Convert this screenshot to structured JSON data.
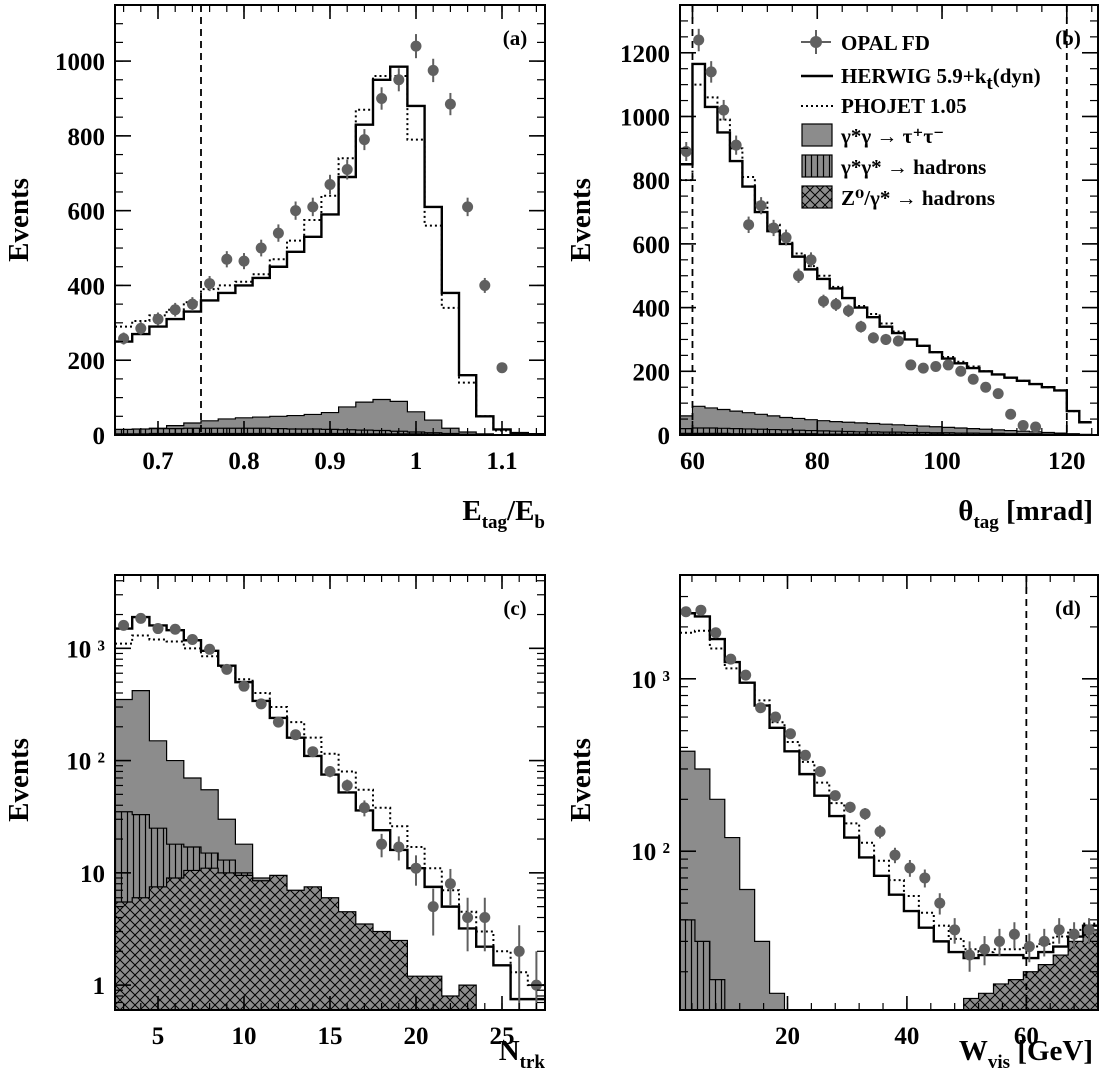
{
  "colors": {
    "fill_tau": "#8c8c8c",
    "marker": "#606060",
    "ink": "#000000"
  },
  "legend": {
    "data": "OPAL FD",
    "herwig": "HERWIG 5.9+k",
    "herwig_sub": "t",
    "herwig_tail": "(dyn)",
    "phojet": "PHOJET 1.05",
    "tau": "γ*γ → τ⁺τ⁻",
    "gg_had": "γ*γ* → hadrons",
    "z_had": "Z⁰/γ* → hadrons"
  },
  "chart_data": [
    {
      "panel": "(a)",
      "type": "histogram",
      "ylabel": "Events",
      "xlabel_main": "E",
      "xlabel_sub1": "tag",
      "xlabel_mid": "/E",
      "xlabel_sub2": "b",
      "xlim": [
        0.65,
        1.15
      ],
      "ylim": [
        0,
        1150
      ],
      "log": false,
      "xticks": [
        {
          "v": 0.7,
          "label": "0.7"
        },
        {
          "v": 0.8,
          "label": "0.8"
        },
        {
          "v": 0.9,
          "label": "0.9"
        },
        {
          "v": 1.0,
          "label": "1"
        },
        {
          "v": 1.1,
          "label": "1.1"
        }
      ],
      "yticks": [
        {
          "v": 0,
          "label": "0"
        },
        {
          "v": 200,
          "label": "200"
        },
        {
          "v": 400,
          "label": "400"
        },
        {
          "v": 600,
          "label": "600"
        },
        {
          "v": 800,
          "label": "800"
        },
        {
          "v": 1000,
          "label": "1000"
        }
      ],
      "cut_x": [
        0.75
      ],
      "bin_edges": [
        0.65,
        0.67,
        0.69,
        0.71,
        0.73,
        0.75,
        0.77,
        0.79,
        0.81,
        0.83,
        0.85,
        0.87,
        0.89,
        0.91,
        0.93,
        0.95,
        0.97,
        0.99,
        1.01,
        1.03,
        1.05,
        1.07,
        1.09,
        1.11,
        1.13,
        1.15
      ],
      "herwig": [
        250,
        270,
        290,
        310,
        330,
        360,
        380,
        400,
        420,
        450,
        490,
        530,
        590,
        690,
        830,
        950,
        985,
        880,
        610,
        380,
        160,
        50,
        15,
        5,
        2
      ],
      "phojet": [
        290,
        305,
        320,
        335,
        355,
        390,
        400,
        410,
        430,
        470,
        520,
        575,
        640,
        740,
        870,
        960,
        960,
        790,
        560,
        340,
        140,
        50,
        12,
        4,
        1
      ],
      "tau": [
        8,
        12,
        18,
        25,
        32,
        38,
        43,
        46,
        48,
        50,
        52,
        55,
        60,
        75,
        88,
        95,
        90,
        62,
        40,
        18,
        8,
        3,
        1,
        0,
        0
      ],
      "gg_had": [
        15,
        16,
        17,
        17,
        18,
        18,
        18,
        18,
        18,
        17,
        16,
        16,
        15,
        14,
        13,
        12,
        10,
        8,
        6,
        4,
        2,
        1,
        0,
        0,
        0
      ],
      "z_had": [
        3,
        3,
        4,
        4,
        4,
        4,
        4,
        4,
        4,
        4,
        4,
        4,
        4,
        4,
        3,
        3,
        3,
        3,
        2,
        1,
        1,
        0,
        0,
        0,
        0
      ],
      "data_x": [
        0.66,
        0.68,
        0.7,
        0.72,
        0.74,
        0.76,
        0.78,
        0.8,
        0.82,
        0.84,
        0.86,
        0.88,
        0.9,
        0.92,
        0.94,
        0.96,
        0.98,
        1.0,
        1.02,
        1.04,
        1.06,
        1.08,
        1.1
      ],
      "data_y": [
        258,
        285,
        310,
        335,
        350,
        405,
        470,
        465,
        500,
        540,
        600,
        610,
        670,
        710,
        790,
        900,
        950,
        1040,
        975,
        885,
        610,
        400,
        180
      ]
    },
    {
      "panel": "(b)",
      "type": "histogram",
      "ylabel": "Events",
      "xlabel_main": "θ",
      "xlabel_sub1": "tag",
      "xlabel_mid": " [mrad]",
      "xlabel_sub2": "",
      "xlim": [
        58,
        125
      ],
      "ylim": [
        0,
        1350
      ],
      "log": false,
      "xticks": [
        {
          "v": 60,
          "label": "60"
        },
        {
          "v": 80,
          "label": "80"
        },
        {
          "v": 100,
          "label": "100"
        },
        {
          "v": 120,
          "label": "120"
        }
      ],
      "yticks": [
        {
          "v": 0,
          "label": "0"
        },
        {
          "v": 200,
          "label": "200"
        },
        {
          "v": 400,
          "label": "400"
        },
        {
          "v": 600,
          "label": "600"
        },
        {
          "v": 800,
          "label": "800"
        },
        {
          "v": 1000,
          "label": "1000"
        },
        {
          "v": 1200,
          "label": "1200"
        }
      ],
      "cut_x": [
        60,
        120
      ],
      "bin_edges": [
        58,
        60,
        62,
        64,
        66,
        68,
        70,
        72,
        74,
        76,
        78,
        80,
        82,
        84,
        86,
        88,
        90,
        92,
        94,
        96,
        98,
        100,
        102,
        104,
        106,
        108,
        110,
        112,
        114,
        116,
        118,
        120,
        122,
        124
      ],
      "herwig": [
        850,
        1165,
        1030,
        950,
        860,
        780,
        700,
        640,
        600,
        560,
        520,
        490,
        460,
        430,
        400,
        370,
        340,
        320,
        300,
        280,
        260,
        240,
        225,
        210,
        200,
        190,
        180,
        170,
        160,
        150,
        140,
        75,
        40
      ],
      "phojet": [
        800,
        1100,
        1060,
        990,
        900,
        810,
        730,
        660,
        610,
        570,
        530,
        500,
        465,
        430,
        405,
        380,
        350,
        325,
        300,
        280,
        260,
        245,
        230,
        215,
        200,
        190,
        180,
        170,
        160,
        150,
        140,
        75,
        40
      ],
      "tau": [
        60,
        90,
        85,
        80,
        75,
        70,
        65,
        60,
        55,
        52,
        48,
        45,
        42,
        40,
        38,
        36,
        34,
        32,
        30,
        28,
        26,
        24,
        22,
        20,
        18,
        16,
        14,
        12,
        10,
        8,
        6,
        4,
        2
      ],
      "gg_had": [
        20,
        22,
        22,
        21,
        20,
        19,
        18,
        17,
        16,
        15,
        14,
        13,
        12,
        11,
        10,
        10,
        9,
        9,
        8,
        8,
        7,
        7,
        6,
        6,
        5,
        5,
        4,
        4,
        4,
        3,
        3,
        2,
        1
      ],
      "z_had": [
        5,
        5,
        5,
        5,
        4,
        4,
        4,
        4,
        4,
        4,
        4,
        3,
        3,
        3,
        3,
        3,
        3,
        3,
        3,
        3,
        3,
        2,
        2,
        2,
        2,
        2,
        2,
        2,
        2,
        2,
        2,
        1,
        1
      ],
      "data_x": [
        59,
        61,
        63,
        65,
        67,
        69,
        71,
        73,
        75,
        77,
        79,
        81,
        83,
        85,
        87,
        89,
        91,
        93,
        95,
        97,
        99,
        101,
        103,
        105,
        107,
        109,
        111,
        113,
        115,
        117,
        119,
        121,
        123
      ],
      "data_y": [
        890,
        1240,
        1140,
        1020,
        910,
        660,
        720,
        650,
        620,
        500,
        550,
        420,
        410,
        390,
        340,
        305,
        300,
        295,
        220,
        210,
        215,
        220,
        200,
        175,
        150,
        130,
        65,
        30,
        25,
        0,
        0,
        0,
        0
      ]
    },
    {
      "panel": "(c)",
      "type": "histogram",
      "ylabel": "Events",
      "xlabel_main": "N",
      "xlabel_sub1": "trk",
      "xlabel_mid": "",
      "xlabel_sub2": "",
      "xlim": [
        2.5,
        27.5
      ],
      "ylim": [
        0.6,
        4500
      ],
      "log": true,
      "xticks": [
        {
          "v": 5,
          "label": "5"
        },
        {
          "v": 10,
          "label": "10"
        },
        {
          "v": 15,
          "label": "15"
        },
        {
          "v": 20,
          "label": "20"
        },
        {
          "v": 25,
          "label": "25"
        }
      ],
      "yticks": [
        {
          "v": 1,
          "label": "1"
        },
        {
          "v": 10,
          "label": "10"
        },
        {
          "v": 100,
          "label": "10 ²"
        },
        {
          "v": 1000,
          "label": "10 ³"
        }
      ],
      "cut_x": [],
      "bin_edges": [
        2.5,
        3.5,
        4.5,
        5.5,
        6.5,
        7.5,
        8.5,
        9.5,
        10.5,
        11.5,
        12.5,
        13.5,
        14.5,
        15.5,
        16.5,
        17.5,
        18.5,
        19.5,
        20.5,
        21.5,
        22.5,
        23.5,
        24.5,
        25.5,
        26.5,
        27.5
      ],
      "herwig": [
        1500,
        1900,
        1600,
        1450,
        1180,
        950,
        700,
        500,
        340,
        240,
        160,
        110,
        75,
        52,
        36,
        24,
        16,
        11,
        7.5,
        5,
        3.2,
        2.2,
        1.5,
        0.75,
        0.75
      ],
      "phojet": [
        1100,
        1300,
        1200,
        1150,
        1000,
        850,
        680,
        530,
        400,
        300,
        220,
        160,
        115,
        80,
        55,
        38,
        26,
        17,
        11,
        7,
        4.5,
        3,
        2,
        1.3,
        1.0
      ],
      "tau": [
        350,
        420,
        150,
        100,
        70,
        55,
        30,
        18,
        9,
        6,
        4,
        2,
        1.3,
        0.9,
        0.7,
        0.5,
        0,
        0,
        0,
        0,
        0,
        0,
        0,
        0,
        0
      ],
      "gg_had": [
        35,
        33,
        25,
        18,
        17,
        15,
        13,
        10,
        8,
        6,
        4.5,
        3.5,
        2.5,
        2,
        1.5,
        1.2,
        0.8,
        0,
        0,
        0,
        0,
        0,
        0,
        0,
        0
      ],
      "z_had": [
        5.5,
        6,
        7.5,
        9,
        10.5,
        11,
        10,
        9.5,
        8.5,
        9.5,
        7,
        7.5,
        6,
        4.5,
        3.5,
        3,
        2.5,
        1.2,
        1.2,
        0.8,
        1.0,
        0,
        0,
        0,
        0
      ],
      "data_x": [
        3,
        4,
        5,
        6,
        7,
        8,
        9,
        10,
        11,
        12,
        13,
        14,
        15,
        16,
        17,
        18,
        19,
        20,
        21,
        22,
        23,
        24,
        25,
        26,
        27
      ],
      "data_y": [
        1600,
        1850,
        1500,
        1480,
        1200,
        980,
        650,
        460,
        320,
        220,
        170,
        120,
        80,
        60,
        38,
        18,
        17,
        11,
        5,
        8,
        4,
        4,
        0,
        2,
        1
      ]
    },
    {
      "panel": "(d)",
      "type": "histogram",
      "ylabel": "Events",
      "xlabel_main": "W",
      "xlabel_sub1": "vis",
      "xlabel_mid": " [GeV]",
      "xlabel_sub2": "",
      "xlim": [
        2,
        72
      ],
      "ylim": [
        12,
        4000
      ],
      "log": true,
      "xticks": [
        {
          "v": 20,
          "label": "20"
        },
        {
          "v": 40,
          "label": "40"
        },
        {
          "v": 60,
          "label": "60"
        }
      ],
      "yticks": [
        {
          "v": 100,
          "label": "10 ²"
        },
        {
          "v": 1000,
          "label": "10 ³"
        }
      ],
      "cut_x": [
        60
      ],
      "bin_edges": [
        2,
        4.5,
        7,
        9.5,
        12,
        14.5,
        17,
        19.5,
        22,
        24.5,
        27,
        29.5,
        32,
        34.5,
        37,
        39.5,
        42,
        44.5,
        47,
        49.5,
        52,
        54.5,
        57,
        59.5,
        62,
        64.5,
        67,
        69.5,
        72
      ],
      "herwig": [
        2400,
        2300,
        1700,
        1250,
        950,
        700,
        520,
        380,
        280,
        210,
        160,
        120,
        92,
        72,
        56,
        45,
        36,
        30,
        26,
        24,
        25,
        25,
        25,
        24,
        26,
        28,
        32,
        37
      ],
      "phojet": [
        1850,
        1900,
        1500,
        1150,
        950,
        750,
        560,
        430,
        330,
        250,
        190,
        145,
        112,
        88,
        68,
        55,
        44,
        37,
        31,
        27,
        26,
        27,
        27,
        28,
        29,
        32,
        35,
        38
      ],
      "tau": [
        380,
        300,
        200,
        120,
        60,
        30,
        15,
        8,
        0,
        0,
        0,
        0,
        0,
        0,
        0,
        0,
        0,
        0,
        0,
        0,
        0,
        0,
        0,
        0,
        0,
        0,
        0,
        0
      ],
      "gg_had": [
        40,
        30,
        18,
        12,
        0,
        0,
        0,
        0,
        0,
        0,
        0,
        0,
        0,
        0,
        0,
        0,
        0,
        0,
        0,
        0,
        0,
        0,
        0,
        0,
        0,
        0,
        0,
        0
      ],
      "z_had": [
        0,
        0,
        0,
        0,
        0,
        0,
        0,
        0,
        0,
        0,
        0,
        0,
        0,
        0,
        0,
        0,
        0,
        0,
        0,
        14,
        15,
        17,
        18,
        20,
        22,
        25,
        30,
        35
      ],
      "data_x": [
        3,
        5.5,
        8,
        10.5,
        13,
        15.5,
        18,
        20.5,
        23,
        25.5,
        28,
        30.5,
        33,
        35.5,
        38,
        40.5,
        43,
        45.5,
        48,
        50.5,
        53,
        55.5,
        58,
        60.5,
        63,
        65.5,
        68,
        70.5
      ],
      "data_y": [
        2450,
        2500,
        1850,
        1300,
        1050,
        680,
        600,
        480,
        360,
        290,
        210,
        180,
        165,
        130,
        95,
        80,
        70,
        50,
        35,
        25,
        27,
        30,
        33,
        28,
        30,
        35,
        33,
        35
      ]
    }
  ]
}
